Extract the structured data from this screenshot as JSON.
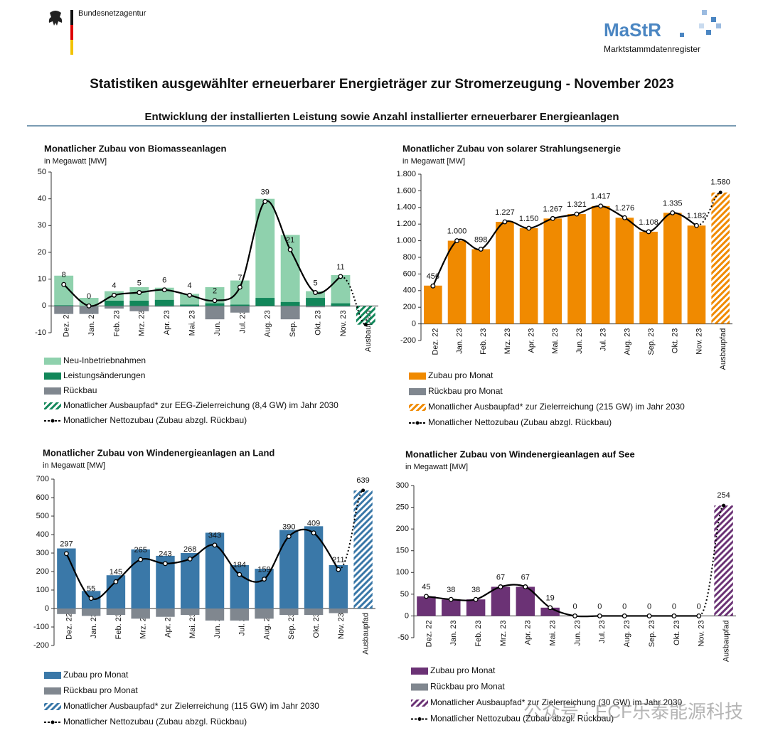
{
  "header": {
    "agency": "Bundesnetzagentur",
    "logo": "MaStR",
    "register": "Marktstammdatenregister",
    "title": "Statistiken ausgewählter erneuerbarer Energieträger zur Stromerzeugung - November 2023",
    "subtitle": "Entwicklung der installierten Leistung sowie Anzahl installierter erneuerbarer Energieanlagen"
  },
  "watermark": "公众号 · ECF乐泰能源科技",
  "chart_data": [
    {
      "type": "bar",
      "title": "Monatlicher Zubau von Biomasseanlagen",
      "subtitle": "in Megawatt [MW]",
      "categories": [
        "Dez. 22",
        "Jan. 23",
        "Feb. 23",
        "Mrz. 23",
        "Apr. 23",
        "Mai. 23",
        "Jun. 23",
        "Jul. 23",
        "Aug. 23",
        "Sep. 23",
        "Okt. 23",
        "Nov. 23",
        "Ausbaupfad"
      ],
      "ylim": [
        -10,
        50
      ],
      "yticks": [
        -10,
        0,
        10,
        20,
        30,
        40,
        50
      ],
      "series": [
        {
          "name": "Neu-Inbetriebnahmen",
          "color": "#8fd1ad",
          "style": "bar",
          "values": [
            11,
            3,
            3.5,
            5,
            4.5,
            4,
            6,
            9,
            37,
            25,
            2.5,
            10.5,
            null
          ]
        },
        {
          "name": "Leistungsänderungen",
          "color": "#12875a",
          "style": "bar",
          "values": [
            0.3,
            0,
            2,
            2,
            2.3,
            0.5,
            1,
            0.5,
            3,
            1.5,
            3,
            1,
            null
          ]
        },
        {
          "name": "Rückbau",
          "color": "#80878f",
          "style": "bar",
          "values": [
            -3,
            -3,
            -1,
            -2,
            -0.3,
            -0.3,
            -5,
            -2.5,
            0,
            -5,
            -0.5,
            -0.3,
            null
          ]
        },
        {
          "name": "Monatlicher Ausbaupfad* zur EEG-Zielerreichung (8,4 GW) im Jahr 2030",
          "color": "#12875a",
          "style": "hatched",
          "show_labels": false,
          "values": [
            null,
            null,
            null,
            null,
            null,
            null,
            null,
            null,
            null,
            null,
            null,
            null,
            -7
          ]
        },
        {
          "name": "Monatlicher Nettozubau (Zubau abzgl. Rückbau)",
          "color": "#000000",
          "style": "line",
          "show_labels": true,
          "values": [
            8,
            0,
            4,
            5,
            6,
            4,
            2,
            7,
            39,
            21,
            5,
            11,
            null
          ]
        }
      ]
    },
    {
      "type": "bar",
      "title": "Monatlicher Zubau von solarer Strahlungsenergie",
      "subtitle": "in Megawatt [MW]",
      "categories": [
        "Dez. 22",
        "Jan. 23",
        "Feb. 23",
        "Mrz. 23",
        "Apr. 23",
        "Mai. 23",
        "Jun. 23",
        "Jul. 23",
        "Aug. 23",
        "Sep. 23",
        "Okt. 23",
        "Nov. 23",
        "Ausbaupfad"
      ],
      "ylim": [
        -200,
        1800
      ],
      "yticks": [
        -200,
        0,
        200,
        400,
        600,
        800,
        {
          "value": 1000,
          "label": "1.000"
        },
        {
          "value": 1200,
          "label": "1.200"
        },
        {
          "value": 1400,
          "label": "1.400"
        },
        {
          "value": 1600,
          "label": "1.600"
        },
        {
          "value": 1800,
          "label": "1.800"
        }
      ],
      "series": [
        {
          "name": "Zubau pro Monat",
          "color": "#f08a00",
          "style": "bar",
          "values": [
            460,
            1000,
            898,
            1227,
            1150,
            1267,
            1321,
            1417,
            1276,
            1108,
            1335,
            1182,
            null
          ]
        },
        {
          "name": "Rückbau pro Monat",
          "color": "#80878f",
          "style": "bar",
          "values": [
            0,
            0,
            0,
            0,
            0,
            0,
            0,
            0,
            0,
            0,
            0,
            0,
            null
          ]
        },
        {
          "name": "Monatlicher Ausbaupfad* zur Zielerreichung (215 GW) im Jahr 2030",
          "color": "#f08a00",
          "style": "hatched",
          "show_labels": true,
          "values": [
            null,
            null,
            null,
            null,
            null,
            null,
            null,
            null,
            null,
            null,
            null,
            null,
            1580
          ],
          "value_labels": [
            null,
            null,
            null,
            null,
            null,
            null,
            null,
            null,
            null,
            null,
            null,
            null,
            "1.580"
          ]
        },
        {
          "name": "Monatlicher Nettozubau (Zubau abzgl. Rückbau)",
          "color": "#000000",
          "style": "line",
          "show_labels": true,
          "values": [
            456,
            1000,
            898,
            1227,
            1150,
            1267,
            1321,
            1417,
            1276,
            1108,
            1335,
            1182,
            null
          ],
          "value_labels": [
            "456",
            "1.000",
            "898",
            "1.227",
            "1.150",
            "1.267",
            "1.321",
            "1.417",
            "1.276",
            "1.108",
            "1.335",
            "1.182",
            null
          ]
        }
      ]
    },
    {
      "type": "bar",
      "title": "Monatlicher Zubau von Windenergieanlagen an Land",
      "subtitle": "in Megawatt [MW]",
      "categories": [
        "Dez. 22",
        "Jan. 23",
        "Feb. 23",
        "Mrz. 23",
        "Apr. 23",
        "Mai. 23",
        "Jun. 23",
        "Jul. 23",
        "Aug. 23",
        "Sep. 23",
        "Okt. 23",
        "Nov. 23",
        "Ausbaupfad"
      ],
      "ylim": [
        -200,
        700
      ],
      "yticks": [
        -200,
        -100,
        0,
        100,
        200,
        300,
        400,
        500,
        600,
        700
      ],
      "series": [
        {
          "name": "Zubau pro Monat",
          "color": "#3a78a8",
          "style": "bar",
          "values": [
            325,
            95,
            180,
            320,
            285,
            300,
            410,
            235,
            215,
            425,
            445,
            235,
            null
          ]
        },
        {
          "name": "Rückbau pro Monat",
          "color": "#80878f",
          "style": "bar",
          "values": [
            -30,
            -40,
            -35,
            -55,
            -45,
            -35,
            -65,
            -65,
            -55,
            -35,
            -35,
            -25,
            null
          ]
        },
        {
          "name": "Monatlicher Ausbaupfad* zur Zielerreichung (115 GW) im Jahr 2030",
          "color": "#3a78a8",
          "style": "hatched",
          "show_labels": true,
          "values": [
            null,
            null,
            null,
            null,
            null,
            null,
            null,
            null,
            null,
            null,
            null,
            null,
            639
          ]
        },
        {
          "name": "Monatlicher Nettozubau (Zubau abzgl. Rückbau)",
          "color": "#000000",
          "style": "line",
          "show_labels": true,
          "values": [
            297,
            55,
            145,
            265,
            243,
            268,
            343,
            184,
            159,
            390,
            409,
            211,
            null
          ]
        }
      ]
    },
    {
      "type": "bar",
      "title": "Monatlicher Zubau von Windenergieanlagen auf See",
      "subtitle": "in Megawatt [MW]",
      "categories": [
        "Dez. 22",
        "Jan. 23",
        "Feb. 23",
        "Mrz. 23",
        "Apr. 23",
        "Mai. 23",
        "Jun. 23",
        "Jul. 23",
        "Aug. 23",
        "Sep. 23",
        "Okt. 23",
        "Nov. 23",
        "Ausbaupfad"
      ],
      "ylim": [
        -50,
        300
      ],
      "yticks": [
        -50,
        0,
        50,
        100,
        150,
        200,
        250,
        300
      ],
      "series": [
        {
          "name": "Zubau pro Monat",
          "color": "#6b3275",
          "style": "bar",
          "values": [
            45,
            38,
            38,
            67,
            67,
            19,
            0,
            0,
            0,
            0,
            0,
            0,
            null
          ]
        },
        {
          "name": "Rückbau pro Monat",
          "color": "#80878f",
          "style": "bar",
          "values": [
            0,
            0,
            0,
            0,
            0,
            0,
            0,
            0,
            0,
            0,
            0,
            0,
            null
          ]
        },
        {
          "name": "Monatlicher Ausbaupfad* zur Zielerreichung (30 GW) im Jahr 2030",
          "color": "#6b3275",
          "style": "hatched",
          "show_labels": true,
          "values": [
            null,
            null,
            null,
            null,
            null,
            null,
            null,
            null,
            null,
            null,
            null,
            null,
            254
          ]
        },
        {
          "name": "Monatlicher Nettozubau (Zubau abzgl. Rückbau)",
          "color": "#000000",
          "style": "line",
          "show_labels": true,
          "values": [
            45,
            38,
            38,
            67,
            67,
            19,
            0,
            0,
            0,
            0,
            0,
            0,
            null
          ]
        }
      ]
    }
  ]
}
